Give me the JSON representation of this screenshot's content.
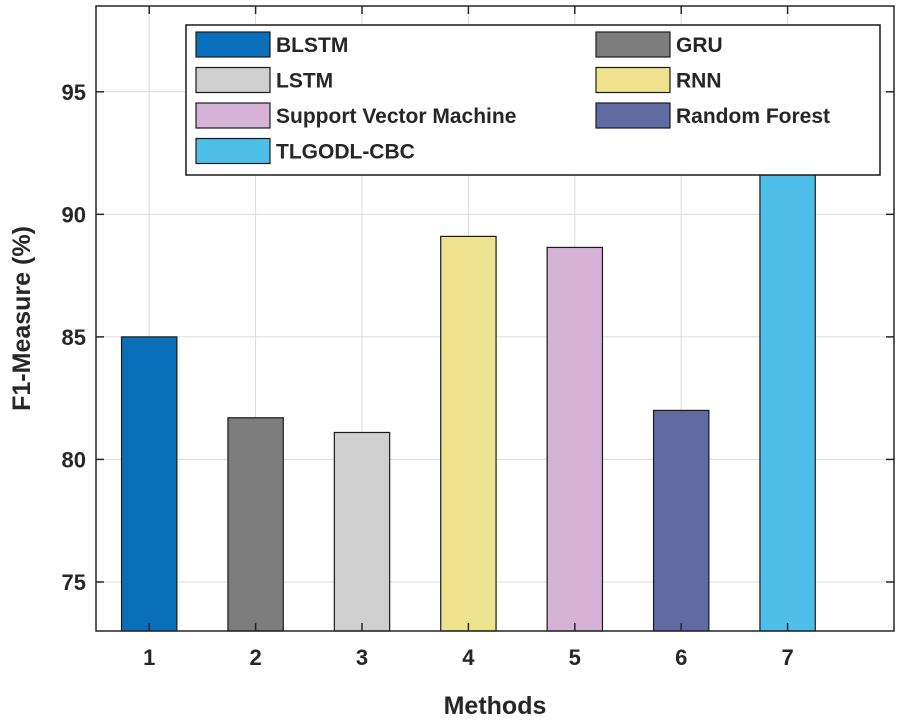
{
  "chart_data": {
    "type": "bar",
    "title": "",
    "xlabel": "Methods",
    "ylabel": "F1-Measure (%)",
    "categories": [
      "1",
      "2",
      "3",
      "4",
      "5",
      "6",
      "7"
    ],
    "values": [
      85.0,
      81.7,
      81.1,
      89.1,
      88.65,
      82.0,
      92.4
    ],
    "series_names": [
      "BLSTM",
      "GRU",
      "LSTM",
      "RNN",
      "Support Vector Machine",
      "Random Forest",
      "TLGODL-CBC"
    ],
    "colors": [
      "#0a6fba",
      "#7d7d7d",
      "#cfcfcf",
      "#efe28f",
      "#d6b3d6",
      "#616aa1",
      "#4dbde9"
    ],
    "ylim": [
      73,
      98.5
    ],
    "yticks": [
      75,
      80,
      85,
      90,
      95
    ],
    "grid": true,
    "legend_position": "top",
    "legend_columns": 2
  }
}
